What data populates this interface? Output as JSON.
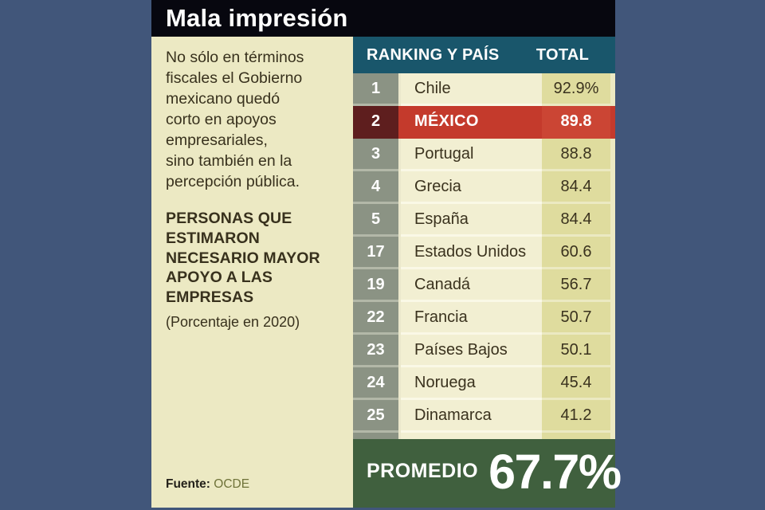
{
  "colors": {
    "background": "#41567a",
    "titlebar": "#07070f",
    "panel_cream": "#ece9c3",
    "table_header_teal": "#19566b",
    "rank_column": "#8b9384",
    "country_column": "#f2efd2",
    "total_column": "#dfdc9e",
    "highlight_red": "#c43a2c",
    "highlight_rank_dark_red": "#5e1e1e",
    "average_green": "#40603e",
    "text_dark": "#38311d",
    "source_olive": "#6f7339"
  },
  "header": {
    "title": "Mala impresión"
  },
  "left_column": {
    "intro_lines": [
      "No sólo en términos",
      "fiscales el Gobierno",
      "mexicano quedó",
      "corto en apoyos",
      "empresariales,",
      "sino también en la",
      "percepción pública."
    ],
    "heading_lines": [
      "PERSONAS QUE",
      "ESTIMARON",
      "NECESARIO MAYOR",
      "APOYO A LAS",
      "EMPRESAS"
    ],
    "note": "(Porcentaje en 2020)",
    "source_label": "Fuente:",
    "source_value": "OCDE"
  },
  "table": {
    "header": {
      "ranking_pais": "RANKING Y PAÍS",
      "total": "TOTAL"
    },
    "rows": [
      {
        "rank": "1",
        "country": "Chile",
        "total": "92.9%"
      },
      {
        "rank": "2",
        "country": "MÉXICO",
        "total": "89.8"
      },
      {
        "rank": "3",
        "country": "Portugal",
        "total": "88.8"
      },
      {
        "rank": "4",
        "country": "Grecia",
        "total": "84.4"
      },
      {
        "rank": "5",
        "country": "España",
        "total": "84.4"
      },
      {
        "rank": "17",
        "country": "Estados Unidos",
        "total": "60.6"
      },
      {
        "rank": "19",
        "country": "Canadá",
        "total": "56.7"
      },
      {
        "rank": "22",
        "country": "Francia",
        "total": "50.7"
      },
      {
        "rank": "23",
        "country": "Países Bajos",
        "total": "50.1"
      },
      {
        "rank": "24",
        "country": "Noruega",
        "total": "45.4"
      },
      {
        "rank": "25",
        "country": "Dinamarca",
        "total": "41.2"
      }
    ]
  },
  "footer": {
    "label": "PROMEDIO",
    "value": "67.7%"
  },
  "chart_data": {
    "type": "table",
    "title": "Mala impresión",
    "description": "No sólo en términos fiscales el Gobierno mexicano quedó corto en apoyos empresariales, sino también en la percepción pública.",
    "measure": "Personas que estimaron necesario mayor apoyo a las empresas",
    "unit": "Porcentaje en 2020",
    "columns": [
      "RANKING Y PAÍS",
      "TOTAL"
    ],
    "rows": [
      {
        "rank": 1,
        "country": "Chile",
        "total": 92.9
      },
      {
        "rank": 2,
        "country": "México",
        "total": 89.8,
        "highlight": true
      },
      {
        "rank": 3,
        "country": "Portugal",
        "total": 88.8
      },
      {
        "rank": 4,
        "country": "Grecia",
        "total": 84.4
      },
      {
        "rank": 5,
        "country": "España",
        "total": 84.4
      },
      {
        "rank": 17,
        "country": "Estados Unidos",
        "total": 60.6
      },
      {
        "rank": 19,
        "country": "Canadá",
        "total": 56.7
      },
      {
        "rank": 22,
        "country": "Francia",
        "total": 50.7
      },
      {
        "rank": 23,
        "country": "Países Bajos",
        "total": 50.1
      },
      {
        "rank": 24,
        "country": "Noruega",
        "total": 45.4
      },
      {
        "rank": 25,
        "country": "Dinamarca",
        "total": 41.2
      }
    ],
    "average_label": "PROMEDIO",
    "average": 67.7,
    "source": "OCDE"
  }
}
